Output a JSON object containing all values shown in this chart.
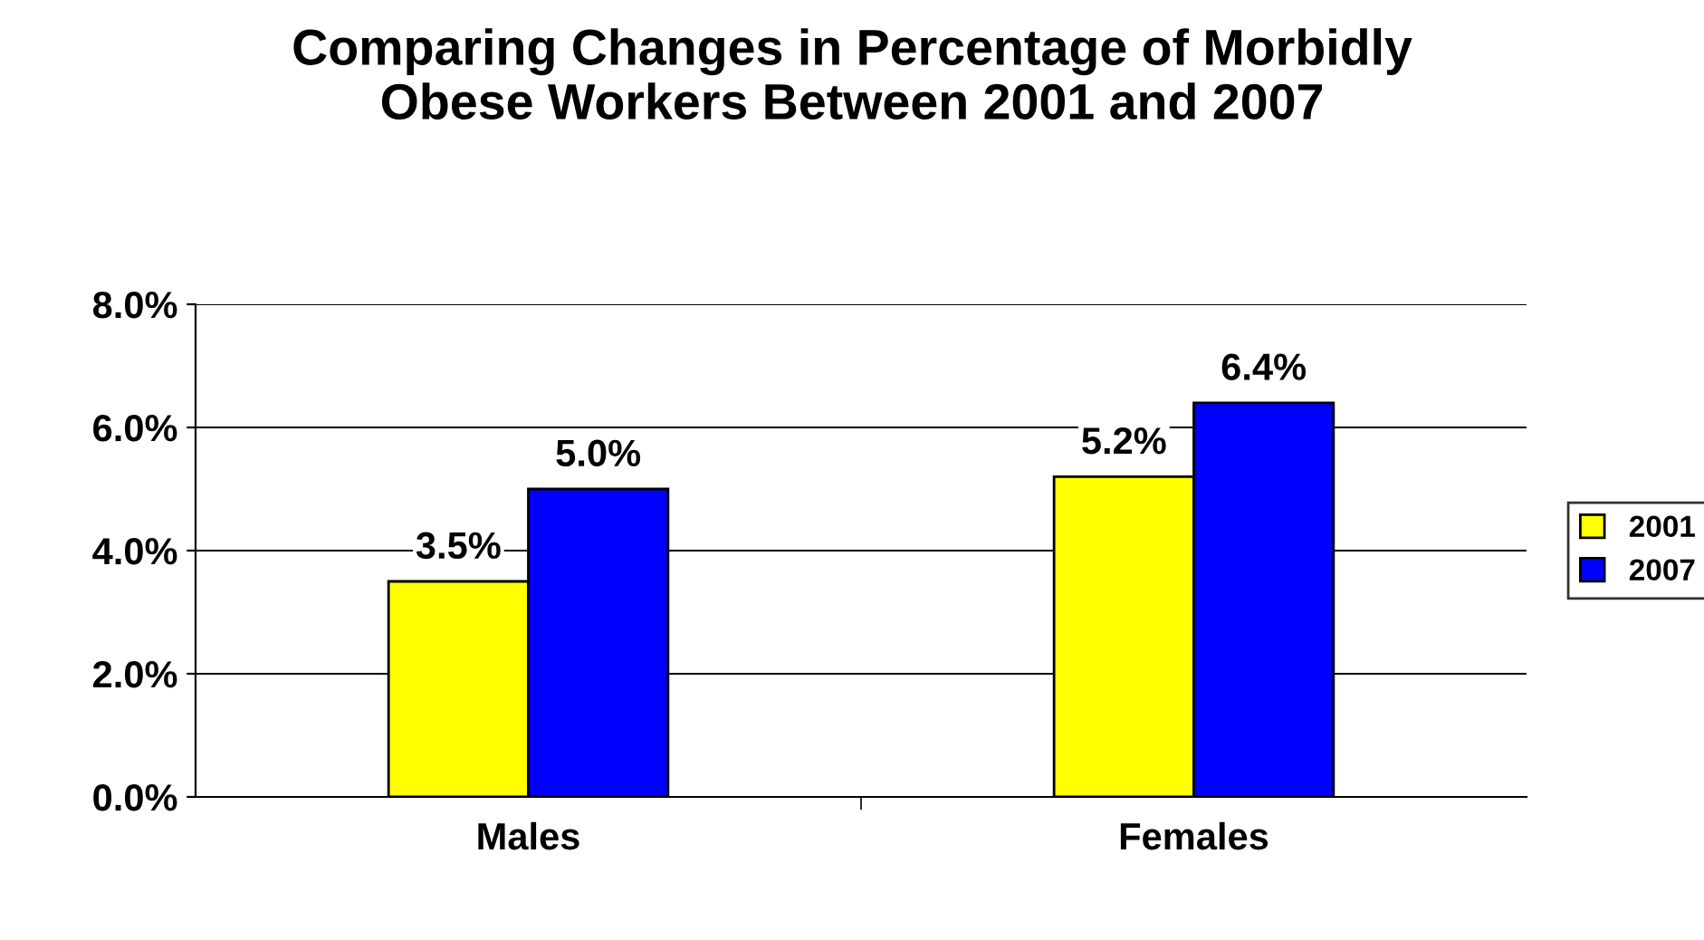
{
  "chart_data": {
    "type": "bar",
    "title": "Comparing Changes in Percentage of Morbidly\nObese Workers Between 2001 and 2007",
    "categories": [
      "Males",
      "Females"
    ],
    "series": [
      {
        "name": "2001",
        "color": "#ffff00",
        "values": [
          3.5,
          5.2
        ],
        "value_labels": [
          "3.5%",
          "5.2%"
        ]
      },
      {
        "name": "2007",
        "color": "#0000ff",
        "values": [
          5.0,
          6.4
        ],
        "value_labels": [
          "5.0%",
          "6.4%"
        ]
      }
    ],
    "ylim": [
      0,
      8
    ],
    "yticks": [
      {
        "value": 0,
        "label": "0.0%"
      },
      {
        "value": 2,
        "label": "2.0%"
      },
      {
        "value": 4,
        "label": "4.0%"
      },
      {
        "value": 6,
        "label": "6.0%"
      },
      {
        "value": 8,
        "label": "8.0%"
      }
    ],
    "grid": "y",
    "legend": "right"
  }
}
